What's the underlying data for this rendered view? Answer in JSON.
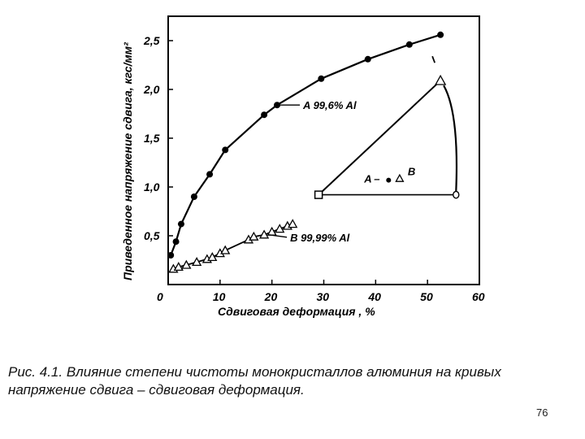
{
  "caption": "Рис. 4.1. Влияние степени чистоты монокристаллов алюминия на кривых напряжение сдвига – сдвиговая деформация.",
  "page_number": "76",
  "chart_data": {
    "type": "scatter",
    "xlabel": "Сдвиговая деформация , %",
    "ylabel": "Приведенное напряжение сдвига, кгс/мм²",
    "xlim": [
      0,
      60
    ],
    "ylim": [
      0,
      2.75
    ],
    "x_ticks": [
      "0",
      "10",
      "20",
      "30",
      "40",
      "50",
      "60"
    ],
    "y_ticks": [
      "0,5",
      "1,0",
      "1,5",
      "2,0",
      "2,5"
    ],
    "grid": false,
    "series": [
      {
        "name": "A 99,6% Al",
        "marker": "filled-circle",
        "x": [
          0.5,
          1.5,
          2.5,
          5,
          8,
          11,
          18.5,
          21,
          29.5,
          38.5,
          46.5,
          52.5
        ],
        "y": [
          0.3,
          0.44,
          0.62,
          0.9,
          1.13,
          1.38,
          1.74,
          1.84,
          2.11,
          2.31,
          2.46,
          2.56
        ]
      },
      {
        "name": "B 99,99% Al",
        "marker": "open-triangle",
        "x": [
          1,
          2,
          3.5,
          5.5,
          7.5,
          8.5,
          10,
          11,
          15.5,
          16.5,
          18.5,
          20,
          21.5,
          23,
          24
        ],
        "y": [
          0.16,
          0.18,
          0.2,
          0.23,
          0.26,
          0.28,
          0.32,
          0.35,
          0.46,
          0.49,
          0.51,
          0.54,
          0.57,
          0.6,
          0.62
        ]
      }
    ],
    "legend": {
      "label_a": "A",
      "label_b": "B",
      "connector": "–",
      "square": {
        "x": 29,
        "y": 0.92
      },
      "triangle": {
        "x": 52.5,
        "y": 2.09
      },
      "circle": {
        "x": 55.5,
        "y": 0.92
      },
      "inner_dot": {
        "x": 42.5,
        "y": 1.07
      },
      "inner_triangle": {
        "x": 44,
        "y": 1.07
      }
    }
  }
}
